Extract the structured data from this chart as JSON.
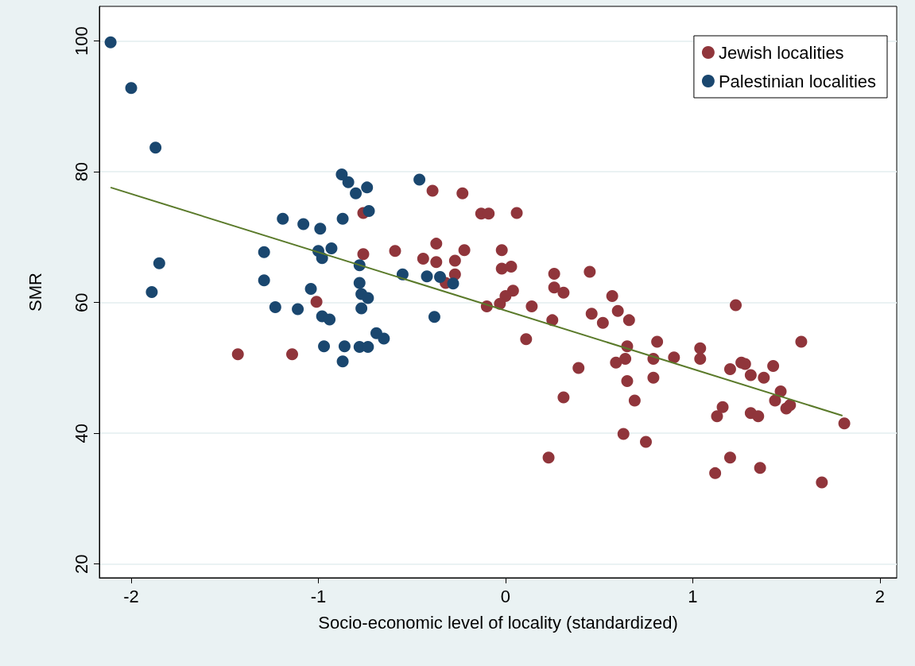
{
  "chart_data": {
    "type": "scatter",
    "xlabel": "Socio-economic level of locality (standardized)",
    "ylabel": "SMR",
    "xlim": [
      -2.17,
      2.09
    ],
    "xticks": [
      -2,
      -1,
      0,
      1,
      2
    ],
    "ylim": [
      17.9,
      105.3
    ],
    "yticks": [
      20,
      40,
      60,
      80,
      100
    ],
    "grid": "y",
    "legend": "top right",
    "marker": "circle",
    "series": [
      {
        "name": "Jewish localities",
        "color": "#90353b",
        "x": [
          -1.43,
          -1.14,
          -1.01,
          -0.76,
          -0.76,
          -0.59,
          -0.39,
          -0.23,
          -0.44,
          -0.37,
          -0.37,
          -0.27,
          -0.22,
          -0.32,
          -0.27,
          -0.13,
          -0.09,
          0.06,
          -0.02,
          -0.02,
          0.03,
          0.04,
          0.0,
          -0.03,
          -0.1,
          0.14,
          0.11,
          0.26,
          0.26,
          0.25,
          0.31,
          0.23,
          0.31,
          0.39,
          0.45,
          0.46,
          0.52,
          0.57,
          0.6,
          0.59,
          0.64,
          0.66,
          0.65,
          0.65,
          0.69,
          0.63,
          0.75,
          0.81,
          0.79,
          0.79,
          0.9,
          1.04,
          1.04,
          1.13,
          1.16,
          1.12,
          1.2,
          1.2,
          1.23,
          1.26,
          1.28,
          1.31,
          1.31,
          1.35,
          1.36,
          1.38,
          1.43,
          1.44,
          1.47,
          1.5,
          1.52,
          1.58,
          1.69,
          1.81
        ],
        "values": [
          52.1,
          52.1,
          60.1,
          73.7,
          67.4,
          67.9,
          77.1,
          76.7,
          66.7,
          66.2,
          69.0,
          66.4,
          68.0,
          63.0,
          64.3,
          73.6,
          73.6,
          73.7,
          68.0,
          65.2,
          65.5,
          61.8,
          61.0,
          59.8,
          59.4,
          59.4,
          54.4,
          64.4,
          62.3,
          57.3,
          61.5,
          36.3,
          45.5,
          50.0,
          64.7,
          58.3,
          56.9,
          61.0,
          58.7,
          50.8,
          51.4,
          57.3,
          53.3,
          48.0,
          45.0,
          39.9,
          38.7,
          54.0,
          51.4,
          48.5,
          51.6,
          53.0,
          51.4,
          42.6,
          44.0,
          33.9,
          36.3,
          49.8,
          59.6,
          50.8,
          50.6,
          48.9,
          43.1,
          42.6,
          34.7,
          48.5,
          50.3,
          45.0,
          46.4,
          43.8,
          44.3,
          54.0,
          32.5,
          41.5
        ]
      },
      {
        "name": "Palestinian localities",
        "color": "#1a476f",
        "x": [
          -2.11,
          -2.0,
          -1.87,
          -1.89,
          -1.85,
          -1.29,
          -1.29,
          -1.23,
          -1.19,
          -1.11,
          -1.08,
          -1.04,
          -0.99,
          -1.0,
          -0.98,
          -0.98,
          -0.97,
          -0.94,
          -0.93,
          -0.87,
          -0.875,
          -0.84,
          -0.8,
          -0.74,
          -0.73,
          -0.78,
          -0.78,
          -0.77,
          -0.77,
          -0.735,
          -0.78,
          -0.735,
          -0.86,
          -0.87,
          -0.69,
          -0.65,
          -0.46,
          -0.55,
          -0.42,
          -0.35,
          -0.28,
          -0.38
        ],
        "values": [
          99.8,
          92.8,
          83.7,
          61.6,
          66.0,
          67.7,
          63.4,
          59.3,
          72.8,
          59.0,
          72.0,
          62.1,
          71.3,
          67.9,
          66.8,
          57.9,
          53.3,
          57.4,
          68.3,
          72.8,
          79.6,
          78.4,
          76.7,
          77.6,
          74.0,
          63.0,
          65.7,
          61.3,
          59.1,
          60.7,
          53.2,
          53.2,
          53.3,
          51.0,
          55.3,
          54.5,
          78.8,
          64.3,
          64.0,
          63.9,
          62.9,
          57.8
        ]
      },
      {
        "type": "line",
        "color": "#5a7a2a",
        "marker": "none",
        "x": [
          -2.11,
          1.8
        ],
        "values": [
          77.6,
          42.7
        ]
      }
    ]
  }
}
